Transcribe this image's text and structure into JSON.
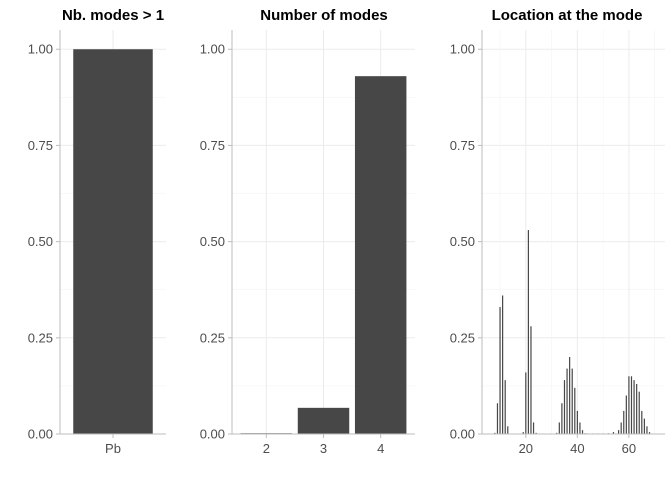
{
  "colors": {
    "bar": "#474747",
    "grid_major": "#ebebeb",
    "grid_minor": "#f4f4f4",
    "axis": "#bdbdbd",
    "tick_text": "#4d4d4d"
  },
  "chart_data": [
    {
      "type": "bar",
      "title": "Nb. modes > 1",
      "categories": [
        "Pb"
      ],
      "values": [
        1.0
      ],
      "ylim": [
        0,
        1.05
      ],
      "yticks": [
        "0.00",
        "0.25",
        "0.50",
        "0.75",
        "1.00"
      ],
      "grid": true
    },
    {
      "type": "bar",
      "title": "Number of modes",
      "categories": [
        "2",
        "3",
        "4"
      ],
      "values": [
        0.002,
        0.068,
        0.93
      ],
      "ylim": [
        0,
        1.05
      ],
      "yticks": [
        "0.00",
        "0.25",
        "0.50",
        "0.75",
        "1.00"
      ],
      "grid": true
    },
    {
      "type": "bar",
      "title": "Location at the mode",
      "x": [
        8,
        9,
        10,
        11,
        12,
        13,
        19,
        20,
        21,
        22,
        23,
        24,
        32,
        33,
        34,
        35,
        36,
        37,
        38,
        39,
        40,
        41,
        42,
        43,
        44,
        46,
        48,
        50,
        52,
        54,
        56,
        57,
        58,
        59,
        60,
        61,
        62,
        63,
        64,
        65,
        66,
        67,
        68
      ],
      "values": [
        0.003,
        0.08,
        0.33,
        0.36,
        0.14,
        0.02,
        0.005,
        0.16,
        0.53,
        0.28,
        0.03,
        0.003,
        0.003,
        0.03,
        0.08,
        0.14,
        0.17,
        0.2,
        0.17,
        0.12,
        0.06,
        0.03,
        0.01,
        0.002,
        0.001,
        0.001,
        0.001,
        0.001,
        0.002,
        0.005,
        0.01,
        0.03,
        0.06,
        0.1,
        0.15,
        0.15,
        0.14,
        0.13,
        0.11,
        0.06,
        0.04,
        0.02,
        0.005
      ],
      "xticks": [
        "20",
        "40",
        "60"
      ],
      "xlim": [
        3,
        74
      ],
      "ylim": [
        0,
        1.05
      ],
      "yticks": [
        "0.00",
        "0.25",
        "0.50",
        "0.75",
        "1.00"
      ],
      "grid": true
    }
  ]
}
